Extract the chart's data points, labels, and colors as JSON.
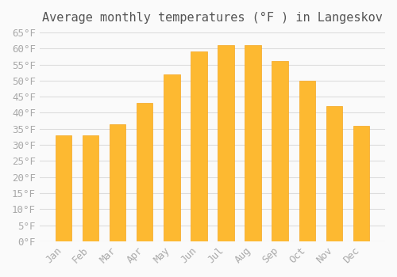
{
  "title": "Average monthly temperatures (°F ) in Langeskov",
  "months": [
    "Jan",
    "Feb",
    "Mar",
    "Apr",
    "May",
    "Jun",
    "Jul",
    "Aug",
    "Sep",
    "Oct",
    "Nov",
    "Dec"
  ],
  "values": [
    33,
    33,
    36.5,
    43,
    52,
    59,
    61,
    61,
    56,
    50,
    42,
    36
  ],
  "bar_color": "#FDB931",
  "bar_edge_color": "#F5A623",
  "background_color": "#FAFAFA",
  "grid_color": "#DDDDDD",
  "text_color": "#AAAAAA",
  "ylim": [
    0,
    65
  ],
  "yticks": [
    0,
    5,
    10,
    15,
    20,
    25,
    30,
    35,
    40,
    45,
    50,
    55,
    60,
    65
  ],
  "title_fontsize": 11,
  "tick_fontsize": 9
}
